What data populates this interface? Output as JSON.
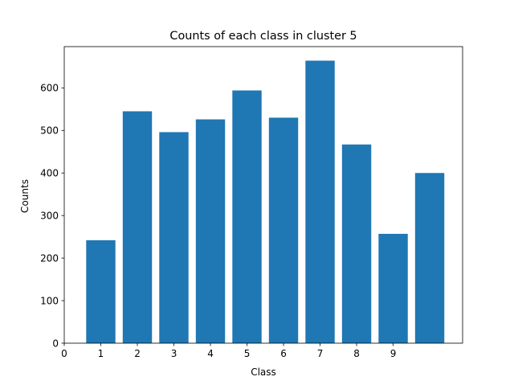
{
  "chart_data": {
    "type": "bar",
    "title": "Counts of each class in cluster 5",
    "xlabel": "Class",
    "ylabel": "Counts",
    "x_positions": [
      1,
      2,
      3,
      4,
      5,
      6,
      7,
      8,
      9,
      10
    ],
    "values": [
      242,
      545,
      496,
      526,
      594,
      530,
      664,
      467,
      257,
      400
    ],
    "xticks": [
      0,
      1,
      2,
      3,
      4,
      5,
      6,
      7,
      8,
      9
    ],
    "yticks": [
      0,
      100,
      200,
      300,
      400,
      500,
      600
    ],
    "xlim": [
      0,
      10.9
    ],
    "ylim": [
      0,
      697
    ],
    "bar_color": "#1f77b4",
    "grid": false
  }
}
